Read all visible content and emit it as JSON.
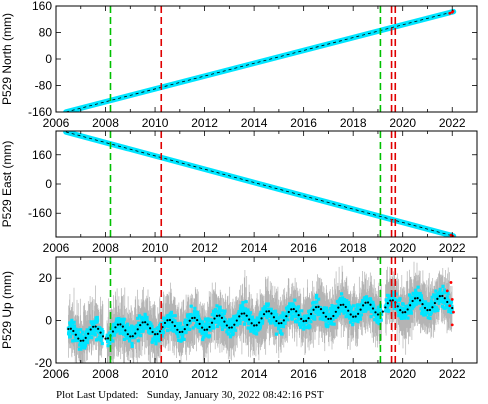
{
  "footer": {
    "label": "Plot Last Updated:",
    "value": "Sunday, January 30, 2022 08:42:16 PST"
  },
  "colors": {
    "data": "#00e5ff",
    "error_bar": "#b4b4b4",
    "model": "#000000",
    "outlier": "#ff0000",
    "equipment_change": "#00c000",
    "earthquake": "#e00000"
  },
  "chart_data": [
    {
      "type": "scatter",
      "ylabel": "P529 North (mm)",
      "x_ticks": [
        2006,
        2008,
        2010,
        2012,
        2014,
        2016,
        2018,
        2020,
        2022
      ],
      "xlim": [
        2006,
        2023
      ],
      "y_ticks": [
        -160,
        -80,
        0,
        80,
        160
      ],
      "ylim": [
        -160,
        160
      ],
      "trend": {
        "x": [
          2006.4,
          2022.05
        ],
        "y": [
          -160,
          143
        ]
      },
      "outliers": {
        "x": [
          2021.9,
          2022.0,
          2022.03
        ],
        "y": [
          138,
          141,
          144
        ]
      },
      "green_dashed_lines": [
        2008.2,
        2019.1
      ],
      "red_dashed_lines": [
        2010.25,
        2019.55,
        2019.7
      ]
    },
    {
      "type": "scatter",
      "ylabel": "P529 East (mm)",
      "x_ticks": [
        2006,
        2008,
        2010,
        2012,
        2014,
        2016,
        2018,
        2020,
        2022
      ],
      "xlim": [
        2006,
        2023
      ],
      "y_ticks": [
        -160,
        0,
        160
      ],
      "ylim": [
        -290,
        290
      ],
      "trend": {
        "x": [
          2006.4,
          2022.05
        ],
        "y": [
          285,
          -285
        ]
      },
      "outliers": {
        "x": [
          2021.95,
          2022.03
        ],
        "y": [
          -280,
          -286
        ]
      },
      "green_dashed_lines": [
        2008.2,
        2019.1
      ],
      "red_dashed_lines": [
        2010.25,
        2019.55,
        2019.7
      ]
    },
    {
      "type": "scatter",
      "ylabel": "P529 Up (mm)",
      "x_ticks": [
        2006,
        2008,
        2010,
        2012,
        2014,
        2016,
        2018,
        2020,
        2022
      ],
      "xlim": [
        2006,
        2023
      ],
      "y_ticks": [
        -20,
        0,
        20
      ],
      "ylim": [
        -20,
        30
      ],
      "seasonal": {
        "amplitude": 3.2,
        "period": 1.0
      },
      "trend_endpoints": {
        "x": [
          2006.5,
          2022.0
        ],
        "y": [
          -7,
          9
        ]
      },
      "outliers": {
        "x": [
          2021.8,
          2021.9,
          2022.0,
          2022.0,
          2022.05,
          2021.95
        ],
        "y": [
          14,
          7,
          10,
          -2,
          4,
          18
        ]
      },
      "green_dashed_lines": [
        2008.2,
        2019.1
      ],
      "red_dashed_lines": [
        2010.25,
        2019.55,
        2019.7
      ]
    }
  ]
}
